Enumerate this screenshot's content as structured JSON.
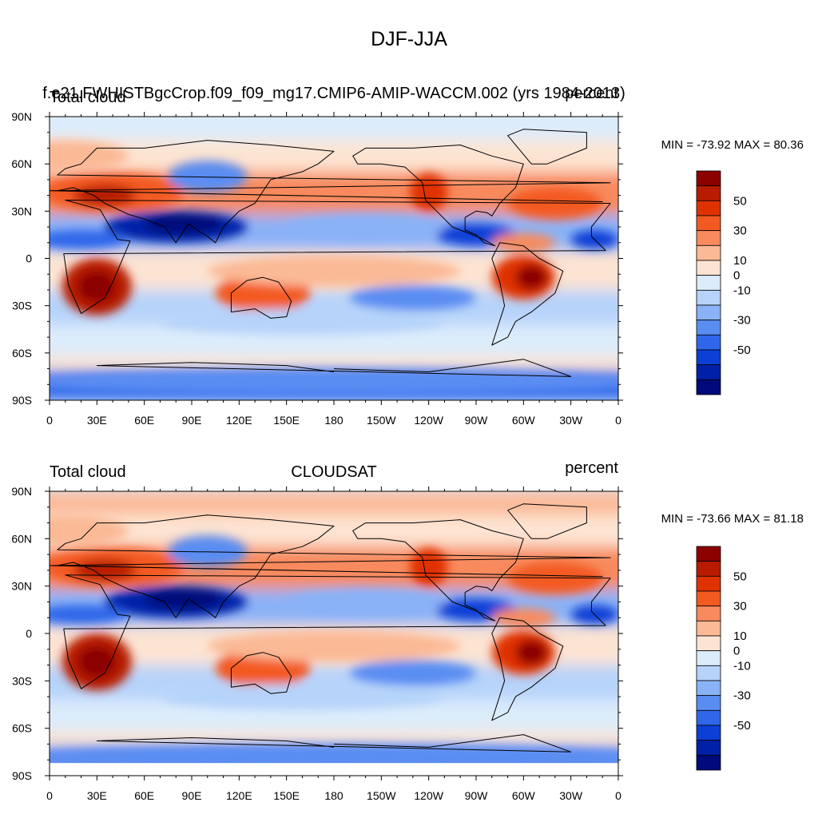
{
  "figure_title": "DJF-JJA",
  "panels": [
    {
      "id": "model",
      "left_title": "Total cloud",
      "center_title": "f.e21.FWHISTBgcCrop.f09_f09_mg17.CMIP6-AMIP-WACCM.002 (yrs 1984-2013)",
      "right_title": "percent",
      "stats": "MIN = -73.92 MAX =  80.36"
    },
    {
      "id": "obs",
      "left_title": "Total cloud",
      "center_title": "CLOUDSAT",
      "right_title": "percent",
      "stats": "MIN = -73.66 MAX =  81.18"
    }
  ],
  "lat_labels": [
    "90N",
    "60N",
    "30N",
    "0",
    "30S",
    "60S",
    "90S"
  ],
  "lon_labels": [
    "0",
    "30E",
    "60E",
    "90E",
    "120E",
    "150E",
    "180",
    "150W",
    "120W",
    "90W",
    "60W",
    "30W",
    "0"
  ],
  "colorbar": {
    "labels": [
      "50",
      "30",
      "10",
      "0",
      "-10",
      "-30",
      "-50"
    ],
    "colors": [
      "#8b0000",
      "#b81b00",
      "#e03200",
      "#f35a21",
      "#f88a5d",
      "#fbb995",
      "#fde4d2",
      "#dcecfb",
      "#b6d3fa",
      "#8ab2f7",
      "#5a8df2",
      "#2f66ea",
      "#0c3fd6",
      "#0020a8",
      "#000b79"
    ]
  },
  "chart_data": {
    "type": "heatmap",
    "variable": "Total cloud",
    "units": "percent",
    "season_difference": "DJF-JJA",
    "levels": [
      -60,
      -50,
      -40,
      -30,
      -20,
      -10,
      -5,
      0,
      5,
      10,
      20,
      30,
      40,
      50,
      60
    ],
    "label_levels": [
      50,
      30,
      10,
      0,
      -10,
      -30,
      -50
    ],
    "panels": [
      {
        "name": "f.e21.FWHISTBgcCrop.f09_f09_mg17.CMIP6-AMIP-WACCM.002 (yrs 1984-2013)",
        "min": -73.92,
        "max": 80.36
      },
      {
        "name": "CLOUDSAT",
        "min": -73.66,
        "max": 81.18
      }
    ],
    "xlim": [
      0,
      360
    ],
    "ylim": [
      -90,
      90
    ]
  }
}
